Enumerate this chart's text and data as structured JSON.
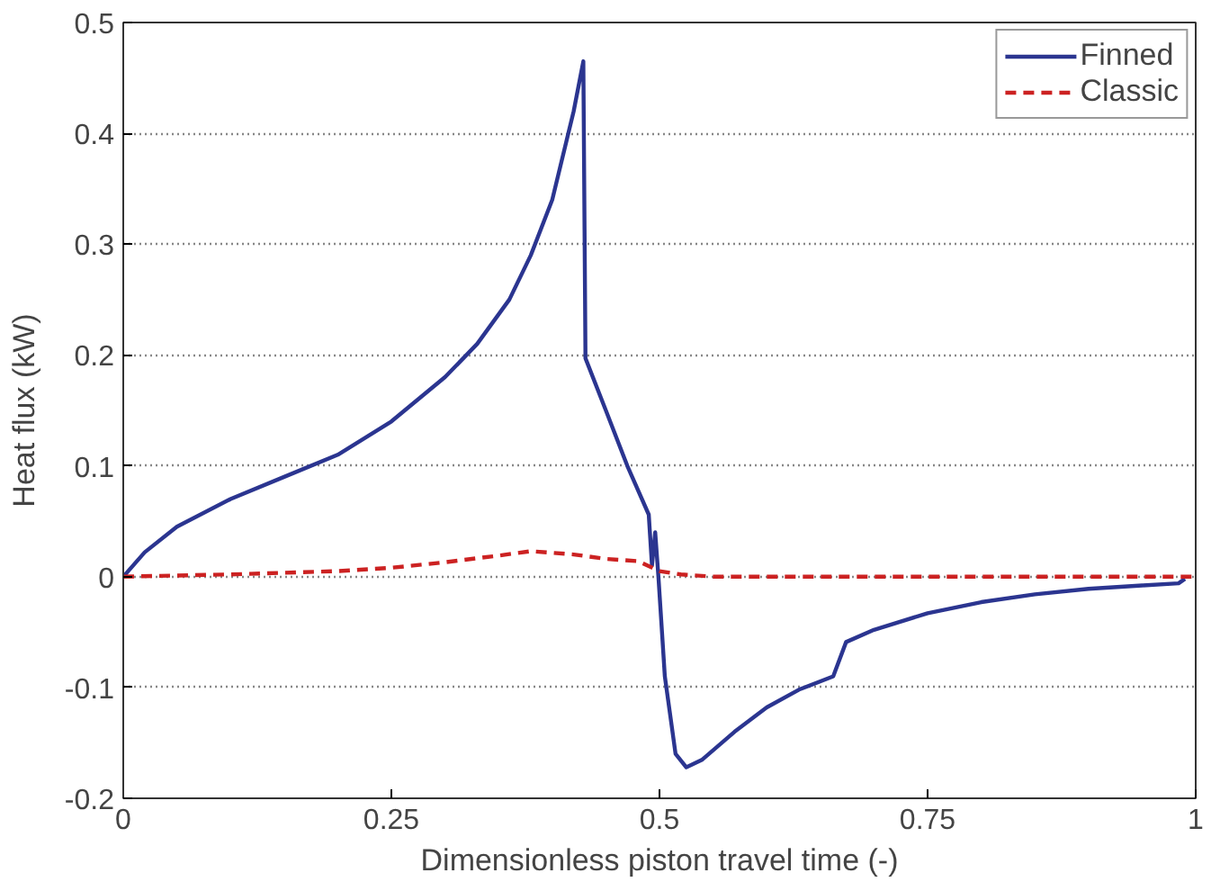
{
  "chart_data": {
    "type": "line",
    "xlabel": "Dimensionless piston travel time (-)",
    "ylabel": "Heat flux (kW)",
    "xlim": [
      0,
      1
    ],
    "ylim": [
      -0.2,
      0.5
    ],
    "xticks": [
      0,
      0.25,
      0.5,
      0.75,
      1
    ],
    "yticks": [
      -0.2,
      -0.1,
      0,
      0.1,
      0.2,
      0.3,
      0.4,
      0.5
    ],
    "grid": "y",
    "legend": "top right",
    "series": [
      {
        "name": "Finned",
        "color": "#2b3590",
        "line_style": "solid",
        "x": [
          0,
          0.02,
          0.05,
          0.1,
          0.15,
          0.2,
          0.25,
          0.3,
          0.33,
          0.36,
          0.38,
          0.4,
          0.41,
          0.42,
          0.429,
          0.431,
          0.45,
          0.47,
          0.49,
          0.493,
          0.496,
          0.499,
          0.505,
          0.515,
          0.525,
          0.54,
          0.57,
          0.6,
          0.63,
          0.662,
          0.674,
          0.7,
          0.75,
          0.8,
          0.85,
          0.9,
          0.95,
          0.984,
          0.99
        ],
        "values": [
          0,
          0.022,
          0.045,
          0.07,
          0.09,
          0.11,
          0.14,
          0.18,
          0.21,
          0.25,
          0.29,
          0.34,
          0.38,
          0.42,
          0.465,
          0.197,
          0.15,
          0.1,
          0.056,
          0.01,
          0.04,
          0,
          -0.09,
          -0.16,
          -0.172,
          -0.165,
          -0.14,
          -0.118,
          -0.102,
          -0.09,
          -0.059,
          -0.048,
          -0.033,
          -0.023,
          -0.016,
          -0.011,
          -0.008,
          -0.006,
          -0.002
        ]
      },
      {
        "name": "Classic",
        "color": "#cc2222",
        "line_style": "dashed",
        "x": [
          0,
          0.1,
          0.2,
          0.25,
          0.3,
          0.35,
          0.38,
          0.42,
          0.45,
          0.48,
          0.5,
          0.52,
          0.55,
          0.6,
          0.7,
          0.8,
          0.9,
          1
        ],
        "values": [
          0,
          0.002,
          0.005,
          0.008,
          0.013,
          0.019,
          0.023,
          0.02,
          0.016,
          0.014,
          0.005,
          0.002,
          0,
          0,
          0,
          0,
          0,
          0
        ]
      }
    ]
  }
}
